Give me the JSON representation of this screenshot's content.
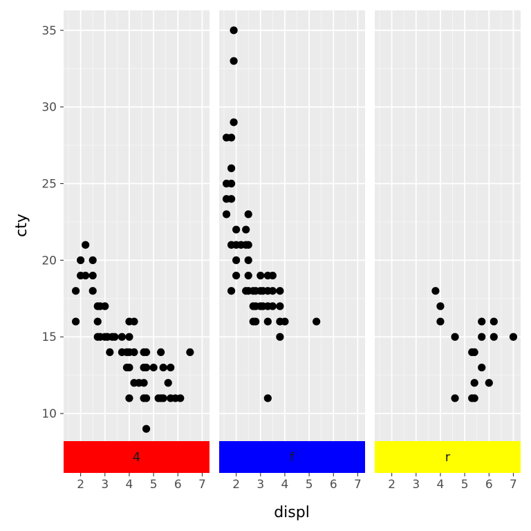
{
  "chart_data": {
    "type": "scatter",
    "xlabel": "displ",
    "ylabel": "cty",
    "xlim": [
      1.3,
      7.3
    ],
    "ylim": [
      8.2,
      36.3
    ],
    "x_ticks": [
      2,
      3,
      4,
      5,
      6,
      7
    ],
    "y_ticks": [
      10,
      15,
      20,
      25,
      30,
      35
    ],
    "grid": true,
    "facet_position": "bottom",
    "panels": [
      {
        "label": "4",
        "strip_color": "#ff0000",
        "points": [
          [
            1.8,
            18
          ],
          [
            1.8,
            16
          ],
          [
            2.0,
            20
          ],
          [
            2.0,
            19
          ],
          [
            2.2,
            21
          ],
          [
            2.2,
            19
          ],
          [
            2.5,
            20
          ],
          [
            2.5,
            19
          ],
          [
            2.5,
            18
          ],
          [
            2.7,
            17
          ],
          [
            2.7,
            16
          ],
          [
            2.7,
            15
          ],
          [
            2.8,
            17
          ],
          [
            2.8,
            15
          ],
          [
            3.0,
            17
          ],
          [
            3.0,
            15
          ],
          [
            3.1,
            15
          ],
          [
            3.2,
            14
          ],
          [
            3.3,
            15
          ],
          [
            3.4,
            15
          ],
          [
            3.7,
            15
          ],
          [
            3.7,
            14
          ],
          [
            3.9,
            14
          ],
          [
            3.9,
            13
          ],
          [
            4.0,
            16
          ],
          [
            4.0,
            15
          ],
          [
            4.0,
            14
          ],
          [
            4.0,
            13
          ],
          [
            4.0,
            11
          ],
          [
            4.2,
            16
          ],
          [
            4.2,
            14
          ],
          [
            4.2,
            12
          ],
          [
            4.4,
            12
          ],
          [
            4.6,
            14
          ],
          [
            4.6,
            13
          ],
          [
            4.6,
            12
          ],
          [
            4.6,
            11
          ],
          [
            4.7,
            14
          ],
          [
            4.7,
            13
          ],
          [
            4.7,
            11
          ],
          [
            4.7,
            9
          ],
          [
            5.0,
            13
          ],
          [
            5.2,
            11
          ],
          [
            5.3,
            14
          ],
          [
            5.3,
            11
          ],
          [
            5.4,
            13
          ],
          [
            5.4,
            11
          ],
          [
            5.6,
            12
          ],
          [
            5.7,
            13
          ],
          [
            5.7,
            11
          ],
          [
            5.9,
            11
          ],
          [
            6.1,
            11
          ],
          [
            6.5,
            14
          ]
        ]
      },
      {
        "label": "f",
        "strip_color": "#0000ff",
        "points": [
          [
            1.6,
            28
          ],
          [
            1.6,
            25
          ],
          [
            1.6,
            24
          ],
          [
            1.6,
            23
          ],
          [
            1.8,
            28
          ],
          [
            1.8,
            26
          ],
          [
            1.8,
            25
          ],
          [
            1.8,
            24
          ],
          [
            1.8,
            21
          ],
          [
            1.8,
            18
          ],
          [
            1.9,
            35
          ],
          [
            1.9,
            33
          ],
          [
            1.9,
            29
          ],
          [
            2.0,
            22
          ],
          [
            2.0,
            21
          ],
          [
            2.0,
            20
          ],
          [
            2.0,
            19
          ],
          [
            2.2,
            21
          ],
          [
            2.4,
            22
          ],
          [
            2.4,
            21
          ],
          [
            2.4,
            18
          ],
          [
            2.5,
            23
          ],
          [
            2.5,
            21
          ],
          [
            2.5,
            20
          ],
          [
            2.5,
            19
          ],
          [
            2.5,
            18
          ],
          [
            2.7,
            18
          ],
          [
            2.7,
            17
          ],
          [
            2.7,
            16
          ],
          [
            2.8,
            18
          ],
          [
            2.8,
            17
          ],
          [
            2.8,
            16
          ],
          [
            3.0,
            19
          ],
          [
            3.0,
            18
          ],
          [
            3.0,
            17
          ],
          [
            3.1,
            18
          ],
          [
            3.1,
            17
          ],
          [
            3.3,
            19
          ],
          [
            3.3,
            18
          ],
          [
            3.3,
            17
          ],
          [
            3.3,
            16
          ],
          [
            3.3,
            11
          ],
          [
            3.5,
            19
          ],
          [
            3.5,
            18
          ],
          [
            3.5,
            17
          ],
          [
            3.8,
            18
          ],
          [
            3.8,
            17
          ],
          [
            3.8,
            16
          ],
          [
            3.8,
            15
          ],
          [
            4.0,
            16
          ],
          [
            5.3,
            16
          ]
        ]
      },
      {
        "label": "r",
        "strip_color": "#ffff00",
        "points": [
          [
            3.8,
            18
          ],
          [
            4.0,
            17
          ],
          [
            4.0,
            16
          ],
          [
            4.6,
            15
          ],
          [
            4.6,
            11
          ],
          [
            5.3,
            14
          ],
          [
            5.4,
            14
          ],
          [
            5.4,
            12
          ],
          [
            5.4,
            11
          ],
          [
            5.3,
            11
          ],
          [
            5.7,
            16
          ],
          [
            5.7,
            15
          ],
          [
            5.7,
            13
          ],
          [
            6.0,
            12
          ],
          [
            6.2,
            16
          ],
          [
            6.2,
            15
          ],
          [
            7.0,
            15
          ]
        ]
      }
    ]
  }
}
